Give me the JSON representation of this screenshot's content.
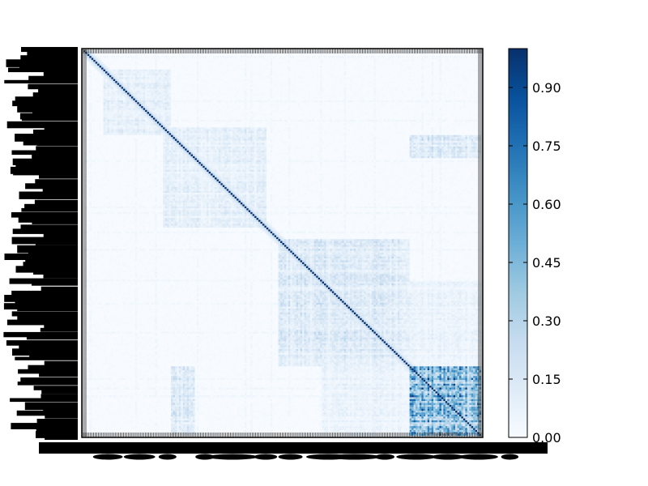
{
  "chart_data": {
    "type": "heatmap",
    "title": "",
    "xlabel": "",
    "ylabel": "",
    "description_matrix": "symmetric similarity matrix, dense unreadable row/column labels",
    "size": 200,
    "diagonal_value": 1.0,
    "value_range": [
      0.0,
      1.0
    ],
    "colormap": [
      "#f7fbff",
      "#deebf7",
      "#c6dbef",
      "#9ecae1",
      "#6baed6",
      "#4292c6",
      "#2171b5",
      "#08519c",
      "#08306b"
    ],
    "blocks": [
      {
        "start": 0.82,
        "end": 1.0,
        "level": 0.45
      },
      {
        "start": 0.49,
        "end": 0.82,
        "level": 0.13
      },
      {
        "start": 0.2,
        "end": 0.46,
        "level": 0.09
      },
      {
        "start": 0.05,
        "end": 0.22,
        "level": 0.08
      }
    ],
    "cross_blocks": [
      {
        "rows": [
          0.82,
          1.0
        ],
        "cols": [
          0.22,
          0.28
        ],
        "level": 0.15
      },
      {
        "rows": [
          0.22,
          0.28
        ],
        "cols": [
          0.82,
          1.0
        ],
        "level": 0.15
      },
      {
        "rows": [
          0.6,
          0.82
        ],
        "cols": [
          0.82,
          1.0
        ],
        "level": 0.07
      },
      {
        "rows": [
          0.82,
          1.0
        ],
        "cols": [
          0.6,
          0.82
        ],
        "level": 0.07
      }
    ],
    "colorbar": {
      "ticks": [
        0.0,
        0.15,
        0.3,
        0.45,
        0.6,
        0.75,
        0.9
      ],
      "tick_labels": [
        "0.00",
        "0.15",
        "0.30",
        "0.45",
        "0.60",
        "0.75",
        "0.90"
      ],
      "min": 0.0,
      "max": 1.0
    }
  }
}
